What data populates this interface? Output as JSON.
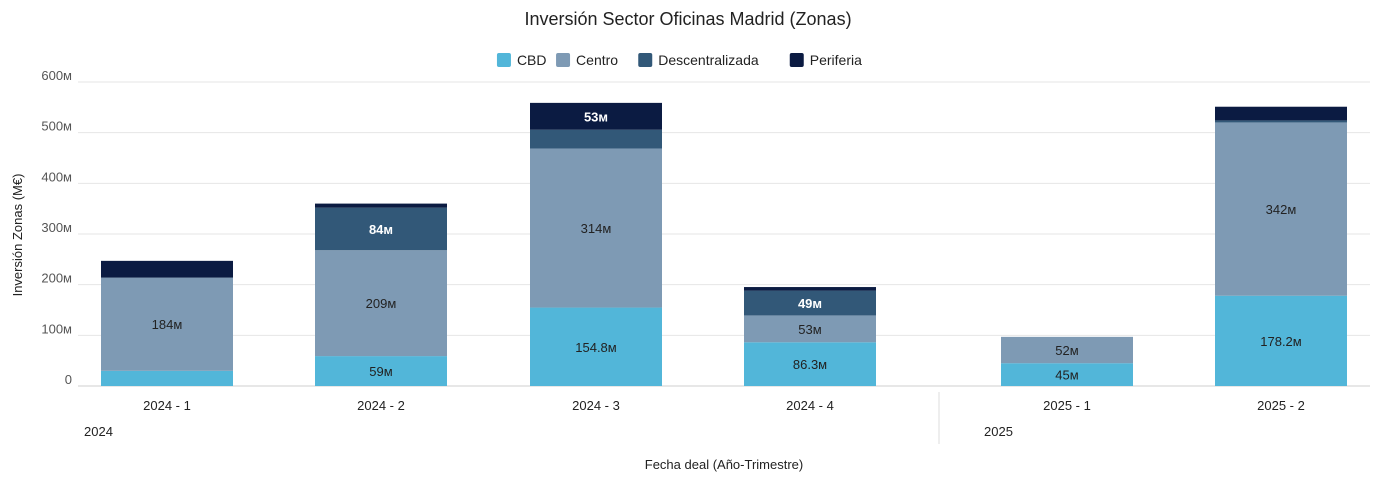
{
  "chart_data": {
    "type": "bar",
    "stacked": true,
    "title": "Inversión Sector Oficinas Madrid (Zonas)",
    "xlabel": "Fecha deal (Año-Trimestre)",
    "ylabel": "Inversión Zonas (M€)",
    "ylim": [
      0,
      600
    ],
    "yticks": [
      0,
      100,
      200,
      300,
      400,
      500,
      600
    ],
    "ytick_labels": [
      "0",
      "100м",
      "200м",
      "300м",
      "400м",
      "500м",
      "600м"
    ],
    "categories": [
      "2024 - 1",
      "2024 - 2",
      "2024 - 3",
      "2024 - 4",
      "2025 - 1",
      "2025 - 2"
    ],
    "groups": [
      {
        "label": "2024",
        "categories": [
          "2024 - 1",
          "2024 - 2",
          "2024 - 3",
          "2024 - 4"
        ]
      },
      {
        "label": "2025",
        "categories": [
          "2025 - 1",
          "2025 - 2"
        ]
      }
    ],
    "legend_position": "top-center",
    "grid": true,
    "series": [
      {
        "name": "CBD",
        "color": "#52b6d9",
        "values": [
          30,
          59,
          154.8,
          86.3,
          45,
          178.2
        ],
        "labels": [
          "",
          "59м",
          "154.8м",
          "86.3м",
          "45м",
          "178.2м"
        ]
      },
      {
        "name": "Centro",
        "color": "#7e9ab4",
        "values": [
          184,
          209,
          314,
          53,
          52,
          342
        ],
        "labels": [
          "184м",
          "209м",
          "314м",
          "53м",
          "52м",
          "342м"
        ]
      },
      {
        "name": "Descentralizada",
        "color": "#325878",
        "values": [
          0,
          84,
          37,
          49,
          0,
          4
        ],
        "labels": [
          "",
          "84м",
          "",
          "49м",
          "",
          ""
        ]
      },
      {
        "name": "Periferia",
        "color": "#0b1b42",
        "values": [
          33,
          8,
          53,
          7,
          0,
          27
        ],
        "labels": [
          "",
          "",
          "53м",
          "",
          "",
          ""
        ]
      }
    ]
  }
}
